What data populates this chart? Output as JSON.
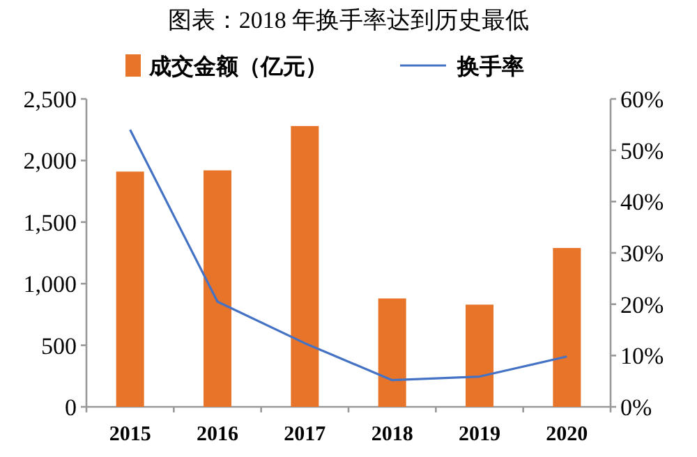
{
  "chart_data": {
    "type": "bar",
    "title": "图表：2018 年换手率达到历史最低",
    "categories": [
      "2015",
      "2016",
      "2017",
      "2018",
      "2019",
      "2020"
    ],
    "series": [
      {
        "name": "成交金额（亿元）",
        "color": "#e8742a",
        "values": [
          1910,
          1920,
          2280,
          880,
          830,
          1290
        ]
      },
      {
        "name": "换手率",
        "type": "line",
        "axis": "y2",
        "color": "#4472c4",
        "values": [
          54,
          20.5,
          12.4,
          5.2,
          5.9,
          9.8
        ]
      }
    ],
    "ylim": [
      0,
      2500
    ],
    "yticks": [
      0,
      500,
      {
        "value": 1000,
        "label": "1,000"
      },
      {
        "value": 1500,
        "label": "1,500"
      },
      {
        "value": 2000,
        "label": "2,000"
      },
      {
        "value": 2500,
        "label": "2,500"
      }
    ],
    "y2lim": [
      0,
      60
    ],
    "y2ticks": [
      {
        "value": 0,
        "label": "0%"
      },
      {
        "value": 10,
        "label": "10%"
      },
      {
        "value": 20,
        "label": "20%"
      },
      {
        "value": 30,
        "label": "30%"
      },
      {
        "value": 40,
        "label": "40%"
      },
      {
        "value": 50,
        "label": "50%"
      },
      {
        "value": 60,
        "label": "60%"
      }
    ],
    "legend": "top"
  }
}
